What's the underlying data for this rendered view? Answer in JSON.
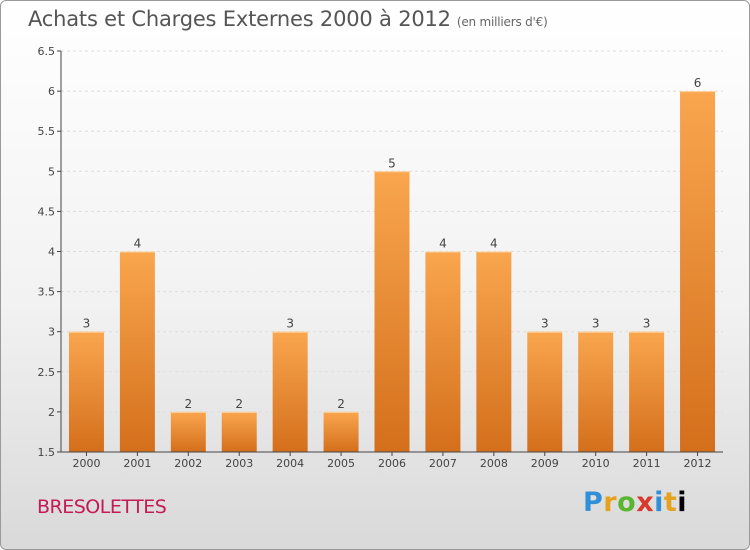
{
  "header": {
    "title": "Achats et Charges Externes 2000 à 2012",
    "unit": "(en milliers d'€)"
  },
  "footer": {
    "commune": "BRESOLETTES",
    "logo": [
      "P",
      "r",
      "o",
      "x",
      "i",
      "t",
      "i"
    ]
  },
  "colors": {
    "bar_light": "#f9a64e",
    "bar_dark": "#d46f1c",
    "axis": "#444444",
    "grid": "#dddddd"
  },
  "chart_data": {
    "type": "bar",
    "categories": [
      "2000",
      "2001",
      "2002",
      "2003",
      "2004",
      "2005",
      "2006",
      "2007",
      "2008",
      "2009",
      "2010",
      "2011",
      "2012"
    ],
    "values": [
      3,
      4,
      2,
      2,
      3,
      2,
      5,
      4,
      4,
      3,
      3,
      3,
      6
    ],
    "data_labels": [
      "3",
      "4",
      "2",
      "2",
      "3",
      "2",
      "5",
      "4",
      "4",
      "3",
      "3",
      "3",
      "6"
    ],
    "ylim": [
      1.5,
      6.5
    ],
    "yticks": [
      "1.5",
      "2",
      "2.5",
      "3",
      "3.5",
      "4",
      "4.5",
      "5",
      "5.5",
      "6",
      "6.5"
    ],
    "grid": "horizontal dashed"
  }
}
